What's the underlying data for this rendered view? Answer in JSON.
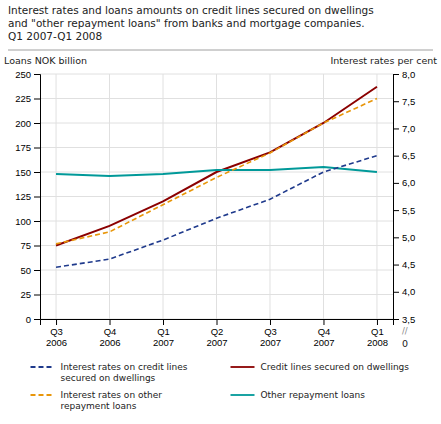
{
  "chart_data": {
    "type": "line",
    "title": "Interest rates and loans amounts on credit lines secured on dwellings\nand \"other repayment loans\" from banks and mortgage companies.\nQ1 2007-Q1 2008",
    "categories": [
      "Q3\n2006",
      "Q4\n2006",
      "Q1\n2007",
      "Q2\n2007",
      "Q3\n2007",
      "Q4\n2007",
      "Q1\n2008"
    ],
    "ylabel": "Loans NOK billion",
    "y2label": "Interest rates per cent",
    "ylim": [
      0,
      250
    ],
    "yticks": [
      0,
      25,
      50,
      75,
      100,
      125,
      150,
      175,
      200,
      225,
      250
    ],
    "y2lim": [
      3.5,
      8.0
    ],
    "y2ticks": [
      {
        "value": 3.5,
        "label": "3,5"
      },
      {
        "value": 4.0,
        "label": "4,0"
      },
      {
        "value": 4.5,
        "label": "4,5"
      },
      {
        "value": 5.0,
        "label": "5,0"
      },
      {
        "value": 5.5,
        "label": "5,5"
      },
      {
        "value": 6.0,
        "label": "6,0"
      },
      {
        "value": 6.5,
        "label": "6,5"
      },
      {
        "value": 7.0,
        "label": "7,0"
      },
      {
        "value": 7.5,
        "label": "7,5"
      },
      {
        "value": 8.0,
        "label": "8,0"
      }
    ],
    "series": [
      {
        "name": "Interest rates on credit lines\nsecured on dwellings",
        "color": "#1F3A8C",
        "axis": "y2",
        "line_style": "dashed",
        "values": [
          4.45,
          4.6,
          4.95,
          5.35,
          5.7,
          6.2,
          6.5
        ]
      },
      {
        "name": "Interest rates on other\nrepayment loans",
        "color": "#E8960A",
        "axis": "y2",
        "line_style": "dashed",
        "values": [
          4.88,
          5.1,
          5.6,
          6.1,
          6.55,
          7.1,
          7.55
        ]
      },
      {
        "name": "Credit lines secured on dwellings",
        "color": "#8B0000",
        "line_style": "solid",
        "values": [
          75,
          95,
          120,
          150,
          170,
          200,
          237
        ]
      },
      {
        "name": "Other repayment loans",
        "color": "#009999",
        "line_style": "solid",
        "values": [
          148,
          146,
          148,
          152,
          152,
          155,
          150
        ]
      }
    ],
    "annotations": [
      "0",
      "//"
    ],
    "grid": true,
    "legend": "bottom"
  }
}
